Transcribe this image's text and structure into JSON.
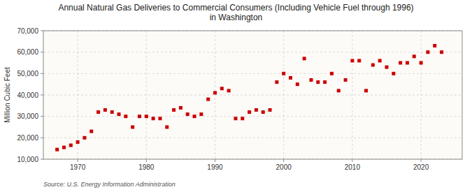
{
  "chart_data": {
    "type": "scatter",
    "title": "Annual Natural Gas Deliveries to Commercial Consumers (Including Vehicle Fuel through 1996)\nin Washington",
    "ylabel": "Million Cubic Feet",
    "annotations": [
      "Source: U.S. Energy Information Administration"
    ],
    "x": [
      1967,
      1968,
      1969,
      1970,
      1971,
      1972,
      1973,
      1974,
      1975,
      1976,
      1977,
      1978,
      1979,
      1980,
      1981,
      1982,
      1983,
      1984,
      1985,
      1986,
      1987,
      1988,
      1989,
      1990,
      1991,
      1992,
      1993,
      1994,
      1995,
      1996,
      1997,
      1998,
      1999,
      2000,
      2001,
      2002,
      2003,
      2004,
      2005,
      2006,
      2007,
      2008,
      2009,
      2010,
      2011,
      2012,
      2013,
      2014,
      2015,
      2016,
      2017,
      2018,
      2019,
      2020,
      2021,
      2022,
      2023
    ],
    "values": [
      14500,
      15500,
      16500,
      18000,
      20000,
      23000,
      32000,
      33000,
      32000,
      31000,
      30000,
      25000,
      30000,
      30000,
      29000,
      29000,
      25000,
      33000,
      34000,
      31000,
      30000,
      31000,
      38000,
      41000,
      43000,
      42000,
      29000,
      29000,
      32000,
      33000,
      32000,
      33000,
      46000,
      50000,
      48000,
      45000,
      57000,
      47000,
      46000,
      46000,
      50000,
      42000,
      47000,
      56000,
      56000,
      42000,
      54000,
      56000,
      53000,
      50000,
      55000,
      55000,
      58000,
      55000,
      60000,
      63000,
      60000
    ],
    "color": "#cc0000",
    "marker": "square",
    "xlim": [
      1965,
      2026
    ],
    "xticks": [
      1970,
      1980,
      1990,
      2000,
      2010,
      2020
    ],
    "ylim": [
      10000,
      70000
    ],
    "yticks": [
      {
        "value": 10000,
        "label": "10,000"
      },
      {
        "value": 20000,
        "label": "20,000"
      },
      {
        "value": 30000,
        "label": "30,000"
      },
      {
        "value": 40000,
        "label": "40,000"
      },
      {
        "value": 50000,
        "label": "50,000"
      },
      {
        "value": 60000,
        "label": "60,000"
      },
      {
        "value": 70000,
        "label": "70,000"
      }
    ],
    "grid": true
  }
}
